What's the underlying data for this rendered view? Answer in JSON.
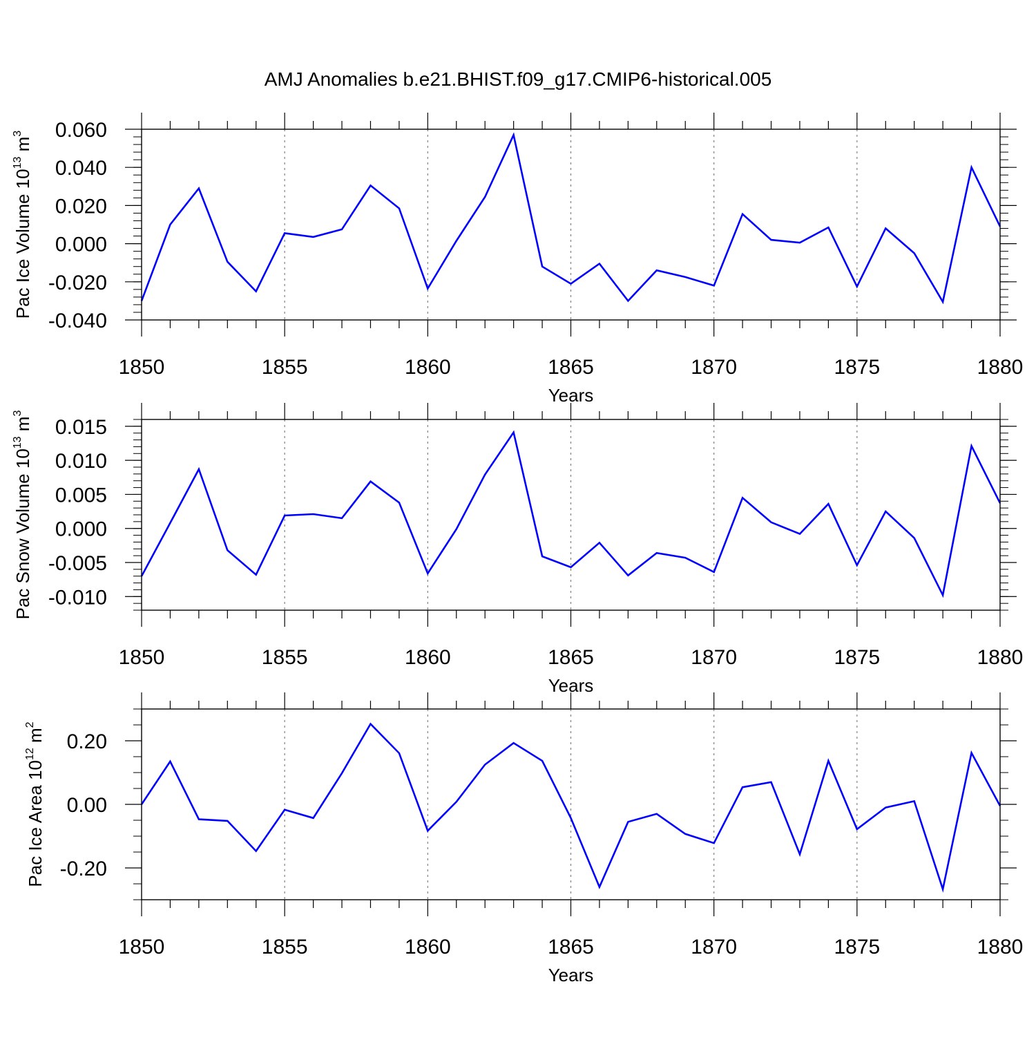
{
  "title": "AMJ Anomalies b.e21.BHIST.f09_g17.CMIP6-historical.005",
  "line_color": "#0000ff",
  "chart_data": [
    {
      "type": "line",
      "ylabel_main": "Pac Ice Volume 10",
      "ylabel_exp": "13",
      "ylabel_unit": " m",
      "ylabel_unit_exp": "3",
      "xlabel": "Years",
      "xlim": [
        1850,
        1880
      ],
      "ylim": [
        -0.04,
        0.06
      ],
      "xticks": [
        1850,
        1855,
        1860,
        1865,
        1870,
        1875,
        1880
      ],
      "xtick_labels": [
        "1850",
        "1855",
        "1860",
        "1865",
        "1870",
        "1875",
        "1880"
      ],
      "yticks": [
        -0.04,
        -0.02,
        0.0,
        0.02,
        0.04,
        0.06
      ],
      "ytick_labels": [
        "-0.040",
        "-0.020",
        "0.000",
        "0.020",
        "0.040",
        "0.060"
      ],
      "yminor_step": 0.004,
      "x": [
        1850,
        1851,
        1852,
        1853,
        1854,
        1855,
        1856,
        1857,
        1858,
        1859,
        1860,
        1861,
        1862,
        1863,
        1864,
        1865,
        1866,
        1867,
        1868,
        1869,
        1870,
        1871,
        1872,
        1873,
        1874,
        1875,
        1876,
        1877,
        1878,
        1879,
        1880
      ],
      "values": [
        -0.03,
        0.01,
        0.029,
        -0.0095,
        -0.025,
        0.0055,
        0.0035,
        0.0075,
        0.0305,
        0.0185,
        -0.0235,
        0.0015,
        0.0245,
        0.057,
        -0.012,
        -0.021,
        -0.0105,
        -0.03,
        -0.014,
        -0.0175,
        -0.022,
        0.0155,
        0.002,
        0.0005,
        0.0085,
        -0.0225,
        0.008,
        -0.005,
        -0.0305,
        0.04,
        0.009
      ]
    },
    {
      "type": "line",
      "ylabel_main": "Pac Snow Volume 10",
      "ylabel_exp": "13",
      "ylabel_unit": " m",
      "ylabel_unit_exp": "3",
      "xlabel": "Years",
      "xlim": [
        1850,
        1880
      ],
      "ylim": [
        -0.012,
        0.016
      ],
      "xticks": [
        1850,
        1855,
        1860,
        1865,
        1870,
        1875,
        1880
      ],
      "xtick_labels": [
        "1850",
        "1855",
        "1860",
        "1865",
        "1870",
        "1875",
        "1880"
      ],
      "yticks": [
        -0.01,
        -0.005,
        0.0,
        0.005,
        0.01,
        0.015
      ],
      "ytick_labels": [
        "-0.010",
        "-0.005",
        "0.000",
        "0.005",
        "0.010",
        "0.015"
      ],
      "yminor_step": 0.001,
      "x": [
        1850,
        1851,
        1852,
        1853,
        1854,
        1855,
        1856,
        1857,
        1858,
        1859,
        1860,
        1861,
        1862,
        1863,
        1864,
        1865,
        1866,
        1867,
        1868,
        1869,
        1870,
        1871,
        1872,
        1873,
        1874,
        1875,
        1876,
        1877,
        1878,
        1879,
        1880
      ],
      "values": [
        -0.007,
        0.0008,
        0.0087,
        -0.0032,
        -0.0068,
        0.0019,
        0.0021,
        0.0015,
        0.0069,
        0.0038,
        -0.0066,
        -0.0001,
        0.0079,
        0.0141,
        -0.0041,
        -0.0057,
        -0.0021,
        -0.0069,
        -0.0036,
        -0.0043,
        -0.0064,
        0.0045,
        0.0009,
        -0.0008,
        0.0036,
        -0.0054,
        0.0025,
        -0.0014,
        -0.0098,
        0.0121,
        0.0037
      ]
    },
    {
      "type": "line",
      "ylabel_main": "Pac Ice Area 10",
      "ylabel_exp": "12",
      "ylabel_unit": " m",
      "ylabel_unit_exp": "2",
      "xlabel": "Years",
      "xlim": [
        1850,
        1880
      ],
      "ylim": [
        -0.3,
        0.3
      ],
      "xticks": [
        1850,
        1855,
        1860,
        1865,
        1870,
        1875,
        1880
      ],
      "xtick_labels": [
        "1850",
        "1855",
        "1860",
        "1865",
        "1870",
        "1875",
        "1880"
      ],
      "yticks": [
        -0.2,
        0.0,
        0.2
      ],
      "ytick_labels": [
        "-0.20",
        "0.00",
        "0.20"
      ],
      "yminor_step": 0.05,
      "x": [
        1850,
        1851,
        1852,
        1853,
        1854,
        1855,
        1856,
        1857,
        1858,
        1859,
        1860,
        1861,
        1862,
        1863,
        1864,
        1865,
        1866,
        1867,
        1868,
        1869,
        1870,
        1871,
        1872,
        1873,
        1874,
        1875,
        1876,
        1877,
        1878,
        1879,
        1880
      ],
      "values": [
        0.0,
        0.135,
        -0.047,
        -0.052,
        -0.147,
        -0.017,
        -0.043,
        0.098,
        0.253,
        0.161,
        -0.083,
        0.008,
        0.125,
        0.193,
        0.137,
        -0.043,
        -0.26,
        -0.055,
        -0.03,
        -0.093,
        -0.122,
        0.054,
        0.07,
        -0.157,
        0.137,
        -0.078,
        -0.01,
        0.01,
        -0.267,
        0.162,
        -0.005
      ]
    }
  ]
}
